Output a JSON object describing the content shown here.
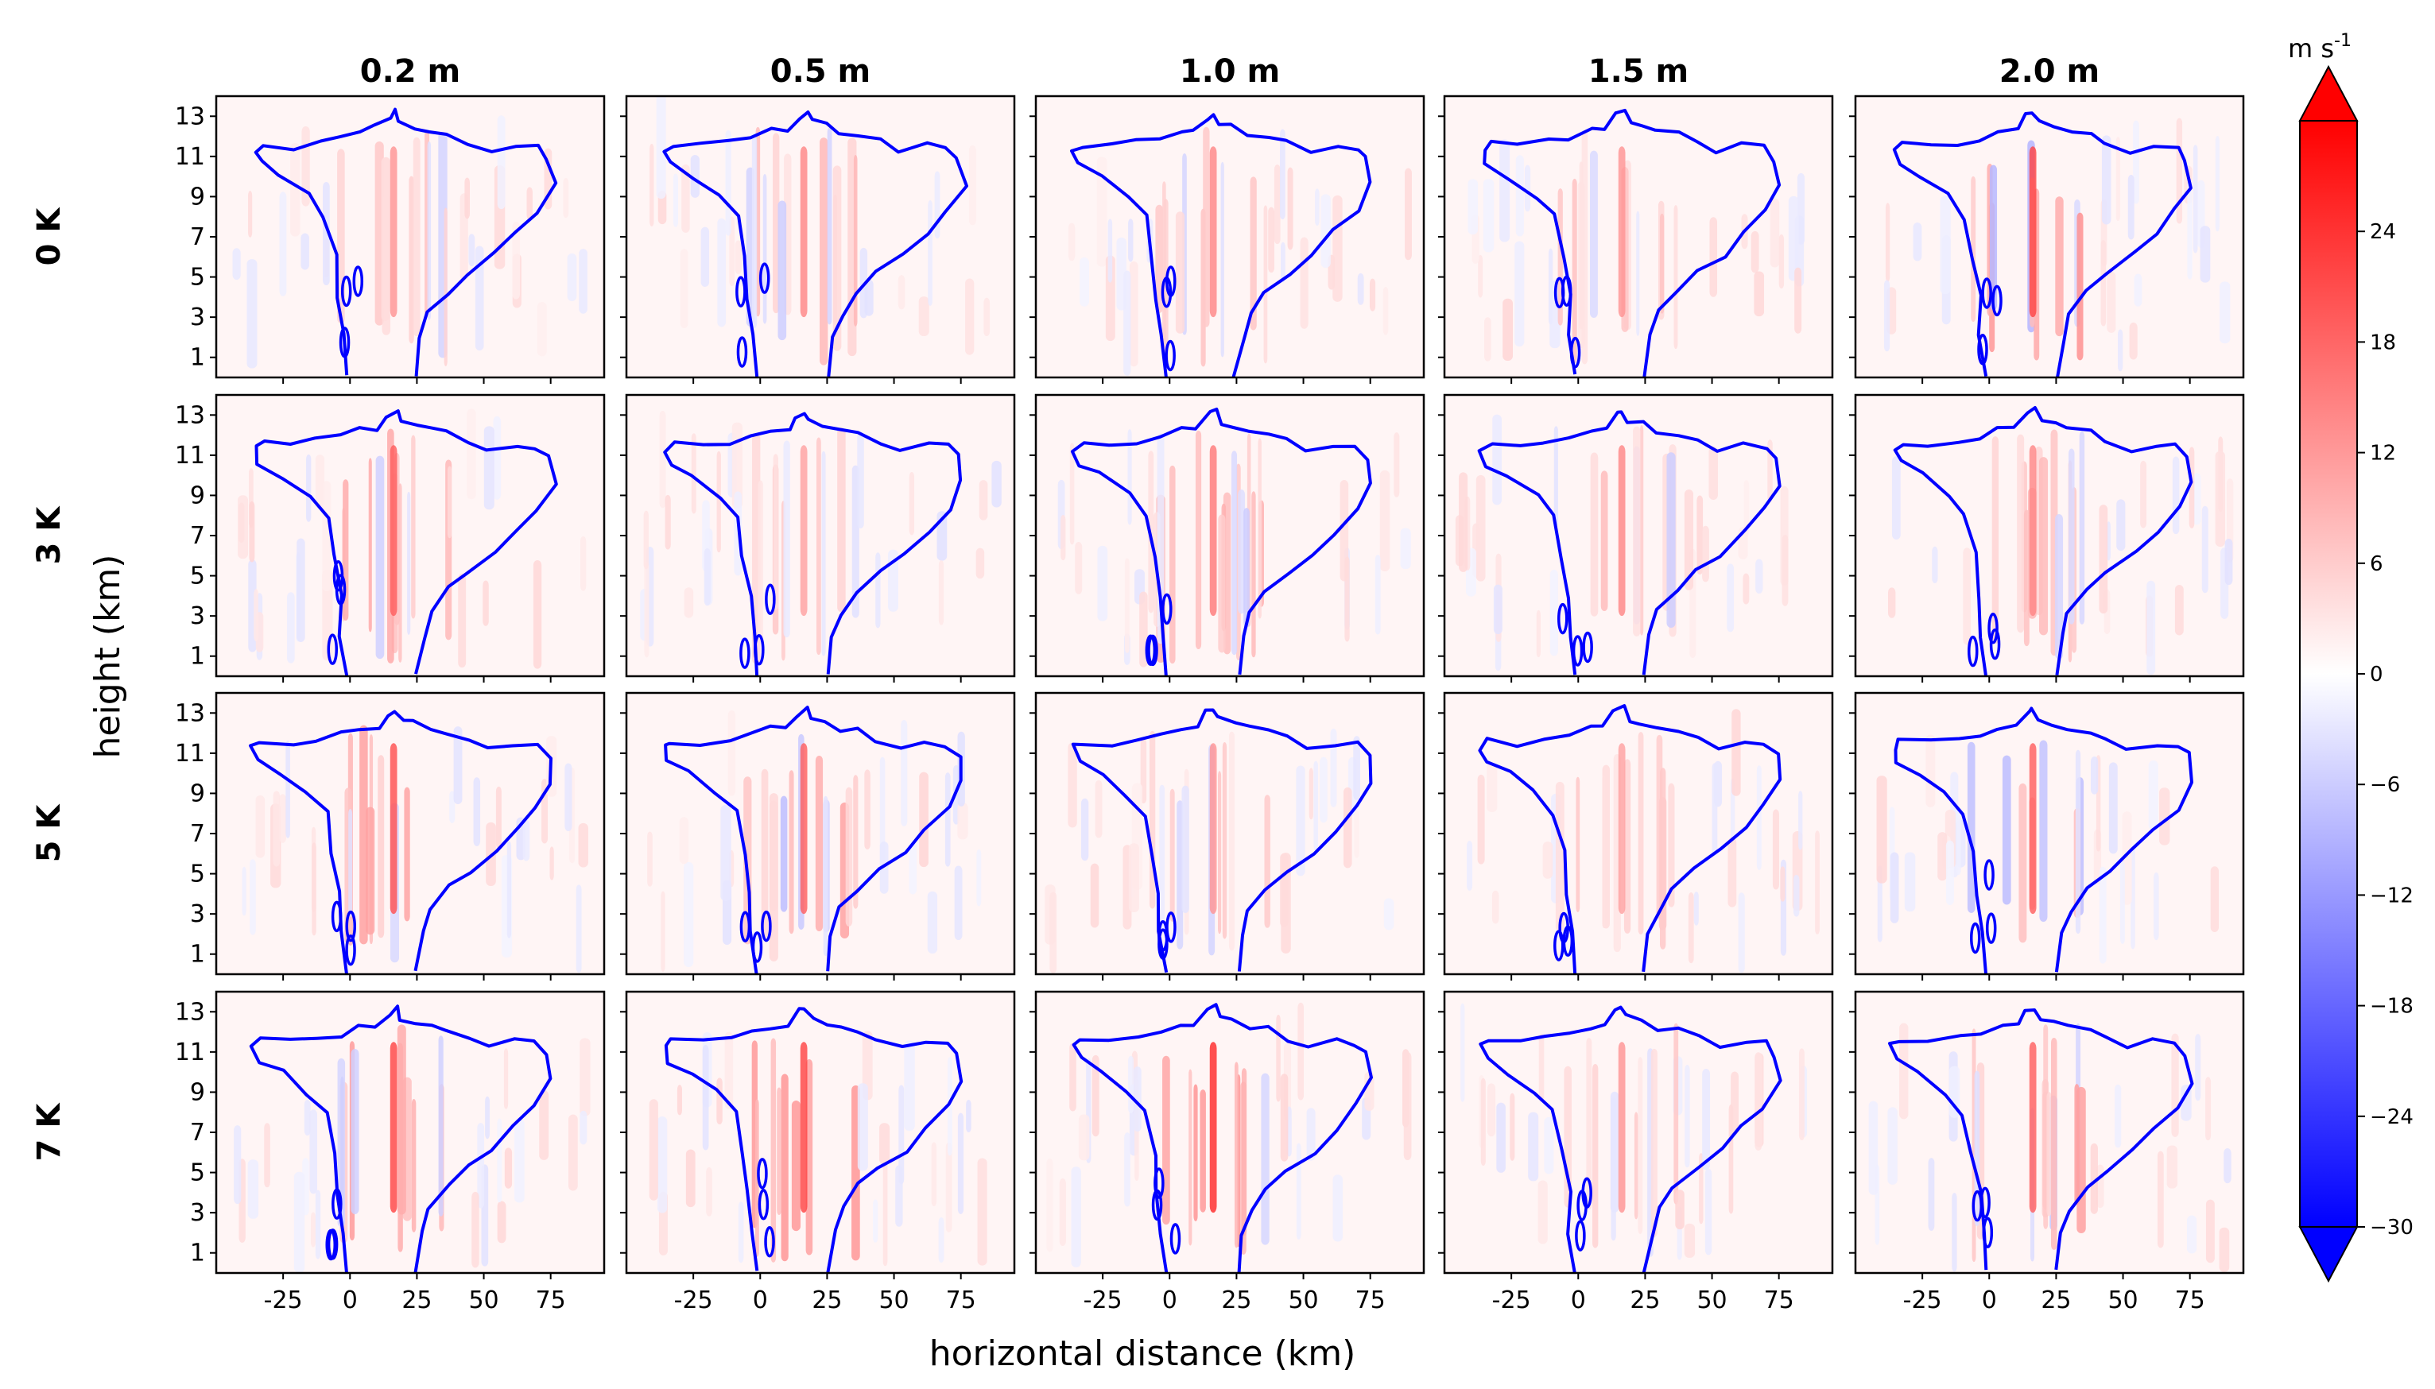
{
  "chart_data": {
    "type": "heatmap",
    "title": "",
    "xlabel": "horizontal distance (km)",
    "ylabel": "height (km)",
    "xlim": [
      -50,
      95
    ],
    "ylim": [
      0,
      14
    ],
    "xticks": [
      -25,
      0,
      25,
      50,
      75
    ],
    "xtick_labels": [
      "-25",
      "0",
      "25",
      "50",
      "75"
    ],
    "yticks": [
      1,
      3,
      5,
      7,
      9,
      11,
      13
    ],
    "ytick_labels": [
      "1",
      "3",
      "5",
      "7",
      "9",
      "11",
      "13"
    ],
    "columns": [
      "0.2 m",
      "0.5 m",
      "1.0 m",
      "1.5 m",
      "2.0 m"
    ],
    "rows": [
      "0 K",
      "3 K",
      "5 K",
      "7 K"
    ],
    "colorbar": {
      "units": "m s-1",
      "min": -30,
      "max": 30,
      "ticks": [
        24,
        18,
        12,
        6,
        0,
        -6,
        -12,
        -18,
        -24,
        -30
      ],
      "tick_labels": [
        "24",
        "18",
        "12",
        "6",
        "0",
        "−6",
        "−12",
        "−18",
        "−24",
        "−30"
      ],
      "low_color": "#0000ff",
      "mid_color": "#ffffff",
      "high_color": "#ff0000",
      "extend": "both"
    },
    "contour_color": "#0000ff",
    "panels_peak_w": [
      [
        8,
        9,
        9,
        8,
        14
      ],
      [
        12,
        7,
        10,
        9,
        9
      ],
      [
        13,
        12,
        8,
        7,
        12
      ],
      [
        14,
        14,
        16,
        8,
        12
      ]
    ]
  }
}
